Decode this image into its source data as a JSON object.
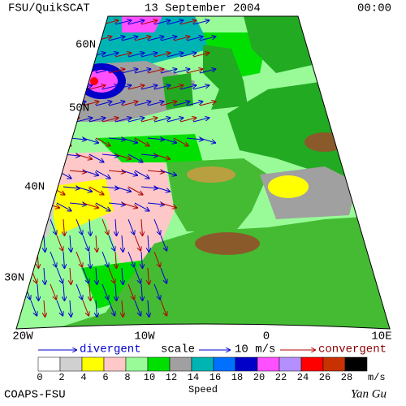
{
  "header": {
    "source": "FSU/QuikSCAT",
    "date": "13 September 2004",
    "time": "00:00"
  },
  "map": {
    "lat_labels": [
      "60N",
      "50N",
      "40N",
      "30N"
    ],
    "lon_labels": [
      "20W",
      "10W",
      "0",
      "10E"
    ]
  },
  "legend": {
    "divergent": "divergent",
    "scale": "scale",
    "scale_value": "10 m/s",
    "convergent": "convergent"
  },
  "colorbar": {
    "ticks": [
      0,
      2,
      4,
      6,
      8,
      10,
      12,
      14,
      16,
      18,
      20,
      22,
      24,
      26,
      28
    ],
    "colors": [
      "#ffffff",
      "#d0d0d0",
      "#ffff00",
      "#ffc8c8",
      "#98fb98",
      "#00e000",
      "#a0a0a0",
      "#00b4b4",
      "#0070ff",
      "#0000c8",
      "#ff50ff",
      "#b490ff",
      "#ff0000",
      "#c83200",
      "#000000"
    ],
    "unit": "m/s",
    "title": "Speed"
  },
  "footer": {
    "left": "COAPS-FSU",
    "right": "Yan Gu"
  }
}
